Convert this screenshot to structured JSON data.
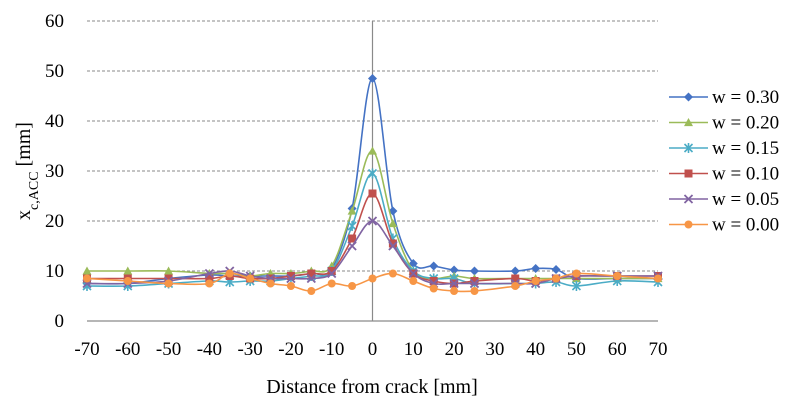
{
  "chart_data": {
    "type": "line",
    "xlabel": "Distance from crack [mm]",
    "ylabel": {
      "main": "x",
      "subscript": "c,ACC",
      "unit": " [mm]"
    },
    "xlim": [
      -70,
      70
    ],
    "ylim": [
      0,
      60
    ],
    "x_ticks": [
      -70,
      -60,
      -50,
      -40,
      -30,
      -20,
      -10,
      0,
      10,
      20,
      30,
      40,
      50,
      60,
      70
    ],
    "y_ticks": [
      0,
      10,
      20,
      30,
      40,
      50,
      60
    ],
    "grid": "horizontal dashed",
    "legend_position": "right",
    "series": [
      {
        "name": "w = 0.30",
        "color": "#4472C4",
        "marker": "diamond",
        "x": [
          -70,
          -60,
          -50,
          -40,
          -35,
          -30,
          -25,
          -20,
          -15,
          -10,
          -5,
          0,
          5,
          10,
          15,
          20,
          25,
          35,
          40,
          45,
          50,
          60,
          70
        ],
        "y": [
          7.5,
          7.5,
          8.5,
          9.2,
          9.0,
          9.0,
          9.0,
          9.0,
          9.5,
          10.5,
          22.5,
          48.5,
          22.0,
          11.5,
          11.0,
          10.2,
          10.0,
          10.0,
          10.5,
          10.3,
          8.5,
          8.5,
          8.5
        ]
      },
      {
        "name": "w = 0.20",
        "color": "#9BBB59",
        "marker": "triangle",
        "x": [
          -70,
          -60,
          -50,
          -40,
          -35,
          -30,
          -25,
          -20,
          -15,
          -10,
          -5,
          0,
          5,
          10,
          15,
          20,
          25,
          35,
          40,
          45,
          50,
          60,
          70
        ],
        "y": [
          10.0,
          10.0,
          10.0,
          9.5,
          9.5,
          9.0,
          9.5,
          9.5,
          10.0,
          11.0,
          22.0,
          34.0,
          19.5,
          10.0,
          8.5,
          9.0,
          8.5,
          8.5,
          8.5,
          8.5,
          8.5,
          8.5,
          8.5
        ]
      },
      {
        "name": "w = 0.15",
        "color": "#4BACC6",
        "marker": "star",
        "x": [
          -70,
          -60,
          -50,
          -40,
          -35,
          -30,
          -25,
          -20,
          -15,
          -10,
          -5,
          0,
          5,
          10,
          15,
          20,
          25,
          35,
          40,
          45,
          50,
          60,
          70
        ],
        "y": [
          7.0,
          7.0,
          7.5,
          8.0,
          7.8,
          8.0,
          8.0,
          8.5,
          9.0,
          10.0,
          19.0,
          29.5,
          16.5,
          10.0,
          8.5,
          8.5,
          7.5,
          7.5,
          7.5,
          7.8,
          7.0,
          8.0,
          7.8
        ]
      },
      {
        "name": "w = 0.10",
        "color": "#C0504D",
        "marker": "square",
        "x": [
          -70,
          -60,
          -50,
          -40,
          -35,
          -30,
          -25,
          -20,
          -15,
          -10,
          -5,
          0,
          5,
          10,
          15,
          20,
          25,
          35,
          40,
          45,
          50,
          60,
          70
        ],
        "y": [
          8.5,
          8.5,
          8.5,
          8.5,
          9.0,
          8.5,
          8.5,
          9.0,
          9.5,
          10.0,
          16.5,
          25.5,
          15.5,
          9.5,
          8.0,
          7.5,
          8.0,
          8.5,
          8.0,
          8.5,
          9.0,
          9.0,
          9.0
        ]
      },
      {
        "name": "w = 0.05",
        "color": "#8064A2",
        "marker": "x",
        "x": [
          -70,
          -60,
          -50,
          -40,
          -35,
          -30,
          -25,
          -20,
          -15,
          -10,
          -5,
          0,
          5,
          10,
          15,
          20,
          25,
          35,
          40,
          45,
          50,
          60,
          70
        ],
        "y": [
          7.5,
          7.5,
          8.0,
          9.5,
          10.0,
          9.0,
          8.5,
          8.5,
          8.5,
          9.5,
          15.0,
          20.0,
          15.0,
          9.5,
          7.5,
          7.5,
          7.5,
          7.5,
          7.5,
          8.5,
          9.0,
          9.0,
          9.0
        ]
      },
      {
        "name": "w = 0.00",
        "color": "#F79646",
        "marker": "circle",
        "x": [
          -70,
          -60,
          -50,
          -40,
          -35,
          -30,
          -25,
          -20,
          -15,
          -10,
          -5,
          0,
          5,
          10,
          15,
          20,
          25,
          35,
          40,
          45,
          50,
          60,
          70
        ],
        "y": [
          8.5,
          8.0,
          7.5,
          7.5,
          9.5,
          8.5,
          7.5,
          7.0,
          6.0,
          7.5,
          7.0,
          8.5,
          9.5,
          8.0,
          6.5,
          6.0,
          6.0,
          7.0,
          8.0,
          8.5,
          9.5,
          9.0,
          8.5
        ]
      }
    ]
  }
}
